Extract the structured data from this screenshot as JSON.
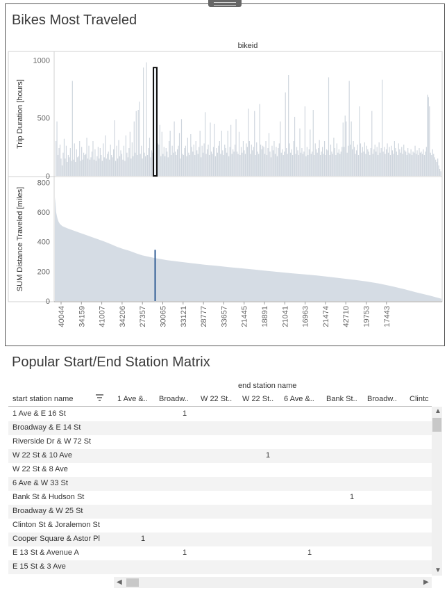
{
  "dashboard": {
    "title": "Bikes Most Traveled",
    "header_label": "bikeid"
  },
  "chart_data": [
    {
      "type": "bar",
      "title": "",
      "xlabel": "bikeid",
      "ylabel": "Trip Duration [hours]",
      "ylim": [
        0,
        1050
      ],
      "yticks": [
        "1000",
        "500",
        "0"
      ],
      "highlight_x": "27357",
      "highlight_value": 935,
      "bar_color": "#cfd6de",
      "highlight_color": "#111111",
      "values": [
        300,
        470,
        180,
        240,
        270,
        150,
        90,
        200,
        320,
        150,
        260,
        120,
        180,
        160,
        240,
        130,
        820,
        140,
        280,
        120,
        230,
        160,
        170,
        300,
        130,
        250,
        140,
        200,
        180,
        190,
        330,
        150,
        260,
        140,
        160,
        210,
        300,
        140,
        230,
        130,
        170,
        250,
        150,
        240,
        180,
        130,
        280,
        160,
        350,
        150,
        190,
        210,
        140,
        270,
        180,
        160,
        230,
        480,
        130,
        260,
        150,
        310,
        170,
        220,
        190,
        140,
        260,
        130,
        350,
        200,
        160,
        240,
        380,
        150,
        290,
        170,
        470,
        200,
        560,
        180,
        570,
        640,
        190,
        260,
        150,
        935,
        200,
        170,
        980,
        180,
        240,
        330,
        160,
        220,
        200,
        150,
        680,
        230,
        170,
        280,
        270,
        440,
        170,
        380,
        190,
        250,
        170,
        240,
        210,
        160,
        300,
        390,
        180,
        260,
        200,
        470,
        210,
        180,
        230,
        260,
        370,
        150,
        490,
        190,
        180,
        240,
        260,
        170,
        330,
        200,
        180,
        360,
        250,
        210,
        270,
        180,
        300,
        220,
        190,
        250,
        390,
        160,
        260,
        200,
        280,
        550,
        190,
        230,
        270,
        180,
        460,
        210,
        190,
        250,
        450,
        170,
        240,
        200,
        260,
        300,
        190,
        390,
        220,
        180,
        270,
        240,
        200,
        390,
        170,
        250,
        440,
        190,
        230,
        210,
        270,
        490,
        210,
        190,
        380,
        180,
        250,
        200,
        300,
        220,
        190,
        280,
        250,
        580,
        300,
        190,
        270,
        220,
        250,
        560,
        180,
        290,
        210,
        190,
        620,
        270,
        230,
        260,
        250,
        190,
        300,
        180,
        240,
        370,
        210,
        160,
        260,
        220,
        300,
        190,
        250,
        170,
        240,
        280,
        470,
        200,
        230,
        180,
        210,
        720,
        240,
        190,
        870,
        280,
        200,
        230,
        180,
        300,
        510,
        190,
        250,
        220,
        180,
        410,
        200,
        240,
        190,
        210,
        600,
        170,
        250,
        180,
        230,
        400,
        190,
        210,
        570,
        180,
        280,
        230,
        200,
        240,
        310,
        180,
        210,
        250,
        190,
        300,
        180,
        230,
        220,
        850,
        180,
        270,
        210,
        190,
        330,
        240,
        180,
        280,
        200,
        230,
        190,
        210,
        250,
        460,
        250,
        520,
        470,
        200,
        260,
        820,
        270,
        470,
        230,
        300,
        250,
        190,
        220,
        270,
        180,
        600,
        280,
        200,
        250,
        210,
        290,
        190,
        260,
        230,
        210,
        180,
        240,
        560,
        190,
        230,
        270,
        210,
        250,
        180,
        290,
        200,
        240,
        830,
        210,
        250,
        190,
        230,
        280,
        200,
        250,
        180,
        260,
        220,
        190,
        300,
        240,
        210,
        180,
        280,
        230,
        200,
        250,
        190,
        270,
        220,
        210,
        180,
        240,
        200,
        190,
        230,
        180,
        210,
        200,
        260,
        190,
        220,
        180,
        240,
        200,
        210,
        190,
        230,
        180,
        210,
        250,
        700,
        680,
        600,
        200,
        180,
        230,
        190,
        160,
        140,
        120,
        150,
        90,
        60,
        40
      ]
    },
    {
      "type": "area",
      "title": "",
      "xlabel": "bikeid",
      "ylabel": "SUM Distance Traveled [miles]",
      "ylim": [
        0,
        820
      ],
      "yticks": [
        "800",
        "600",
        "400",
        "200",
        "0"
      ],
      "highlight_x": "27357",
      "highlight_value": 345,
      "fill_color": "#d5dce4",
      "highlight_color": "#2f5b94",
      "x_tick_labels": [
        "40044",
        "34159",
        "41007",
        "34206",
        "27357",
        "30065",
        "33121",
        "28777",
        "33657",
        "21445",
        "18891",
        "21041",
        "16963",
        "21474",
        "42710",
        "19753",
        "17443"
      ],
      "curve_points": [
        [
          0,
          700
        ],
        [
          0.5,
          660
        ],
        [
          1,
          600
        ],
        [
          2,
          560
        ],
        [
          3,
          535
        ],
        [
          4,
          520
        ],
        [
          6,
          505
        ],
        [
          10,
          490
        ],
        [
          15,
          475
        ],
        [
          20,
          460
        ],
        [
          25,
          445
        ],
        [
          30,
          430
        ],
        [
          35,
          415
        ],
        [
          40,
          400
        ],
        [
          45,
          383
        ],
        [
          50,
          365
        ],
        [
          55,
          350
        ],
        [
          60,
          338
        ],
        [
          65,
          322
        ],
        [
          70,
          308
        ],
        [
          80,
          290
        ],
        [
          90,
          275
        ],
        [
          100,
          265
        ],
        [
          110,
          255
        ],
        [
          120,
          245
        ],
        [
          130,
          237
        ],
        [
          140,
          228
        ],
        [
          150,
          220
        ],
        [
          160,
          212
        ],
        [
          170,
          203
        ],
        [
          180,
          195
        ],
        [
          190,
          187
        ],
        [
          200,
          180
        ],
        [
          210,
          172
        ],
        [
          220,
          163
        ],
        [
          230,
          153
        ],
        [
          240,
          143
        ],
        [
          250,
          132
        ],
        [
          260,
          118
        ],
        [
          270,
          100
        ],
        [
          280,
          80
        ],
        [
          290,
          58
        ],
        [
          300,
          38
        ],
        [
          310,
          15
        ]
      ]
    }
  ],
  "matrix": {
    "title": "Popular Start/End Station Matrix",
    "column_group_label": "end station name",
    "row_header_label": "start station name",
    "sort_icon": "sort-descending-icon",
    "columns": [
      "1 Ave &..",
      "Broadw..",
      "W 22 St..",
      "W 22 St..",
      "6 Ave &..",
      "Bank St..",
      "Broadw..",
      "Clintc"
    ],
    "rows": [
      {
        "name": "1 Ave & E 16 St",
        "values": [
          "",
          "1",
          "",
          "",
          "",
          "",
          "",
          ""
        ]
      },
      {
        "name": "Broadway & E 14 St",
        "values": [
          "",
          "",
          "",
          "",
          "",
          "",
          "",
          ""
        ]
      },
      {
        "name": "Riverside Dr & W 72 St",
        "values": [
          "",
          "",
          "",
          "",
          "",
          "",
          "",
          ""
        ]
      },
      {
        "name": "W 22 St & 10 Ave",
        "values": [
          "",
          "",
          "",
          "1",
          "",
          "",
          "",
          ""
        ]
      },
      {
        "name": "W 22 St & 8 Ave",
        "values": [
          "",
          "",
          "",
          "",
          "",
          "",
          "",
          ""
        ]
      },
      {
        "name": "6 Ave & W 33 St",
        "values": [
          "",
          "",
          "",
          "",
          "",
          "",
          "",
          ""
        ]
      },
      {
        "name": "Bank St & Hudson St",
        "values": [
          "",
          "",
          "",
          "",
          "",
          "1",
          "",
          ""
        ]
      },
      {
        "name": "Broadway & W 25 St",
        "values": [
          "",
          "",
          "",
          "",
          "",
          "",
          "",
          ""
        ]
      },
      {
        "name": "Clinton St & Joralemon St",
        "values": [
          "",
          "",
          "",
          "",
          "",
          "",
          "",
          ""
        ]
      },
      {
        "name": "Cooper Square & Astor Pl",
        "values": [
          "1",
          "",
          "",
          "",
          "",
          "",
          "",
          ""
        ]
      },
      {
        "name": "E 13 St & Avenue A",
        "values": [
          "",
          "1",
          "",
          "",
          "1",
          "",
          "",
          ""
        ]
      },
      {
        "name": "E 15 St & 3 Ave",
        "values": [
          "",
          "",
          "",
          "",
          "",
          "",
          "",
          ""
        ]
      }
    ]
  }
}
